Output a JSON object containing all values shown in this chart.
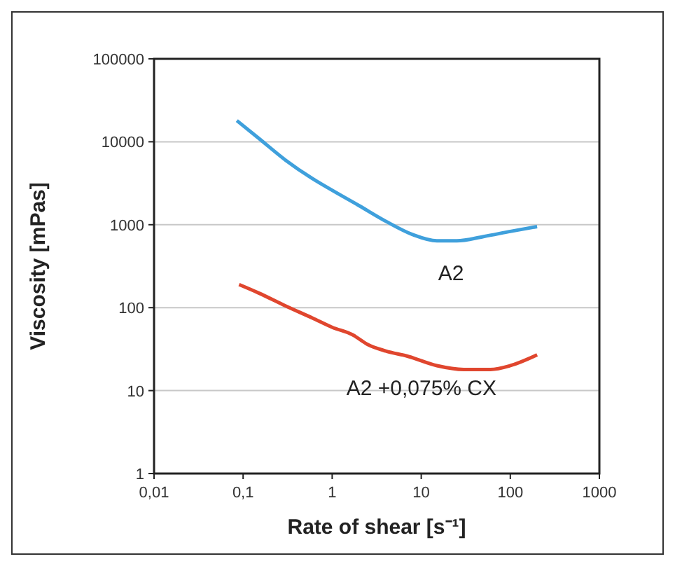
{
  "chart_data": {
    "type": "line",
    "xlabel": "Rate of shear [s⁻¹]",
    "ylabel": "Viscosity [mPas]",
    "log": "xy",
    "grid": "y",
    "line_style": "solid",
    "xlim": [
      0.01,
      1000
    ],
    "xticks": [
      {
        "value": 0.01,
        "label": "0,01"
      },
      {
        "value": 0.1,
        "label": "0,1"
      },
      1,
      10,
      100,
      1000
    ],
    "ylim": [
      1,
      100000
    ],
    "yticks": [
      1,
      10,
      100,
      1000,
      10000,
      100000
    ],
    "series": [
      {
        "name": "A2",
        "color": "#3fa0dc",
        "x": [
          0.085,
          0.15,
          0.3,
          0.6,
          1,
          2,
          4,
          8,
          15,
          25,
          50,
          100,
          200
        ],
        "values": [
          18000,
          11000,
          6000,
          3600,
          2600,
          1700,
          1100,
          760,
          640,
          640,
          720,
          830,
          950
        ]
      },
      {
        "name": "A2 +0,075% CX",
        "color": "#e0462e",
        "x": [
          0.09,
          0.15,
          0.3,
          0.6,
          1,
          1.7,
          2.5,
          4,
          7,
          15,
          30,
          60,
          100,
          200
        ],
        "values": [
          190,
          150,
          105,
          75,
          58,
          47,
          36,
          30,
          26,
          20,
          18,
          18,
          20,
          27
        ]
      }
    ]
  }
}
